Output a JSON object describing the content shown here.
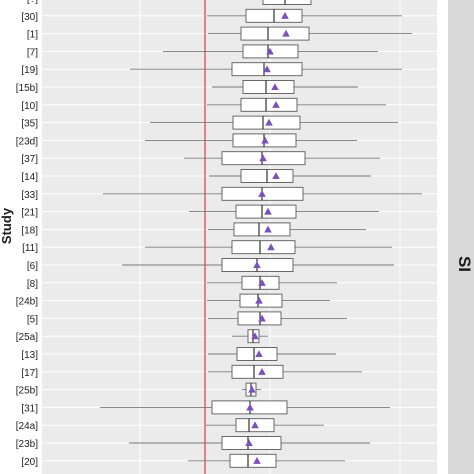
{
  "chart_data": {
    "type": "box",
    "ylabel": "Study",
    "facet_strip_label": "SI",
    "reference_line_color": "#d9475b",
    "mean_marker_color": "#7b4fc4",
    "panel_background": "#ebebeb",
    "strip_background": "#d9d9d9",
    "grid": true,
    "studies": [
      {
        "label": "[?]",
        "wlo": 263,
        "q1": 263,
        "med": 285,
        "q3": 311,
        "whi": 311,
        "mean": null
      },
      {
        "label": "[30]",
        "wlo": 207,
        "q1": 246,
        "med": 274,
        "q3": 302,
        "whi": 402,
        "mean": 285
      },
      {
        "label": "[1]",
        "wlo": 208,
        "q1": 241,
        "med": 268,
        "q3": 309,
        "whi": 412,
        "mean": 286
      },
      {
        "label": "[7]",
        "wlo": 163,
        "q1": 243,
        "med": 268,
        "q3": 298,
        "whi": 378,
        "mean": 270
      },
      {
        "label": "[19]",
        "wlo": 130,
        "q1": 232,
        "med": 264,
        "q3": 302,
        "whi": 402,
        "mean": 267
      },
      {
        "label": "[15b]",
        "wlo": 212,
        "q1": 243,
        "med": 266,
        "q3": 294,
        "whi": 358,
        "mean": 275
      },
      {
        "label": "[10]",
        "wlo": 207,
        "q1": 241,
        "med": 266,
        "q3": 297,
        "whi": 386,
        "mean": 276
      },
      {
        "label": "[35]",
        "wlo": 150,
        "q1": 233,
        "med": 263,
        "q3": 300,
        "whi": 398,
        "mean": 269
      },
      {
        "label": "[23d]",
        "wlo": 145,
        "q1": 233,
        "med": 264,
        "q3": 296,
        "whi": 357,
        "mean": 265
      },
      {
        "label": "[37]",
        "wlo": 184,
        "q1": 222,
        "med": 262,
        "q3": 305,
        "whi": 380,
        "mean": 263
      },
      {
        "label": "[14]",
        "wlo": 209,
        "q1": 241,
        "med": 267,
        "q3": 293,
        "whi": 371,
        "mean": 276
      },
      {
        "label": "[33]",
        "wlo": 103,
        "q1": 222,
        "med": 262,
        "q3": 303,
        "whi": 422,
        "mean": 262
      },
      {
        "label": "[21]",
        "wlo": 189,
        "q1": 236,
        "med": 262,
        "q3": 296,
        "whi": 379,
        "mean": 268
      },
      {
        "label": "[18]",
        "wlo": 208,
        "q1": 234,
        "med": 259,
        "q3": 290,
        "whi": 366,
        "mean": 268
      },
      {
        "label": "[11]",
        "wlo": 145,
        "q1": 232,
        "med": 260,
        "q3": 295,
        "whi": 392,
        "mean": 271
      },
      {
        "label": "[6]",
        "wlo": 122,
        "q1": 222,
        "med": 257,
        "q3": 293,
        "whi": 394,
        "mean": 257
      },
      {
        "label": "[8]",
        "wlo": 207,
        "q1": 242,
        "med": 260,
        "q3": 279,
        "whi": 337,
        "mean": 262
      },
      {
        "label": "[24b]",
        "wlo": 207,
        "q1": 240,
        "med": 258,
        "q3": 282,
        "whi": 330,
        "mean": 259
      },
      {
        "label": "[5]",
        "wlo": 208,
        "q1": 238,
        "med": 260,
        "q3": 281,
        "whi": 347,
        "mean": 262
      },
      {
        "label": "[25a]",
        "wlo": 232,
        "q1": 248,
        "med": 253,
        "q3": 259,
        "whi": 268,
        "mean": 255
      },
      {
        "label": "[13]",
        "wlo": 208,
        "q1": 237,
        "med": 254,
        "q3": 277,
        "whi": 336,
        "mean": 259
      },
      {
        "label": "[17]",
        "wlo": 208,
        "q1": 232,
        "med": 254,
        "q3": 283,
        "whi": 362,
        "mean": 262
      },
      {
        "label": "[25b]",
        "wlo": 242,
        "q1": 246,
        "med": 251,
        "q3": 256,
        "whi": 261,
        "mean": 252
      },
      {
        "label": "[31]",
        "wlo": 100,
        "q1": 212,
        "med": 250,
        "q3": 287,
        "whi": 390,
        "mean": 250
      },
      {
        "label": "[24a]",
        "wlo": 206,
        "q1": 236,
        "med": 249,
        "q3": 274,
        "whi": 324,
        "mean": 255
      },
      {
        "label": "[23b]",
        "wlo": 129,
        "q1": 222,
        "med": 248,
        "q3": 281,
        "whi": 370,
        "mean": 249
      },
      {
        "label": "[20]",
        "wlo": 188,
        "q1": 230,
        "med": 248,
        "q3": 276,
        "whi": 345,
        "mean": 257
      }
    ]
  }
}
